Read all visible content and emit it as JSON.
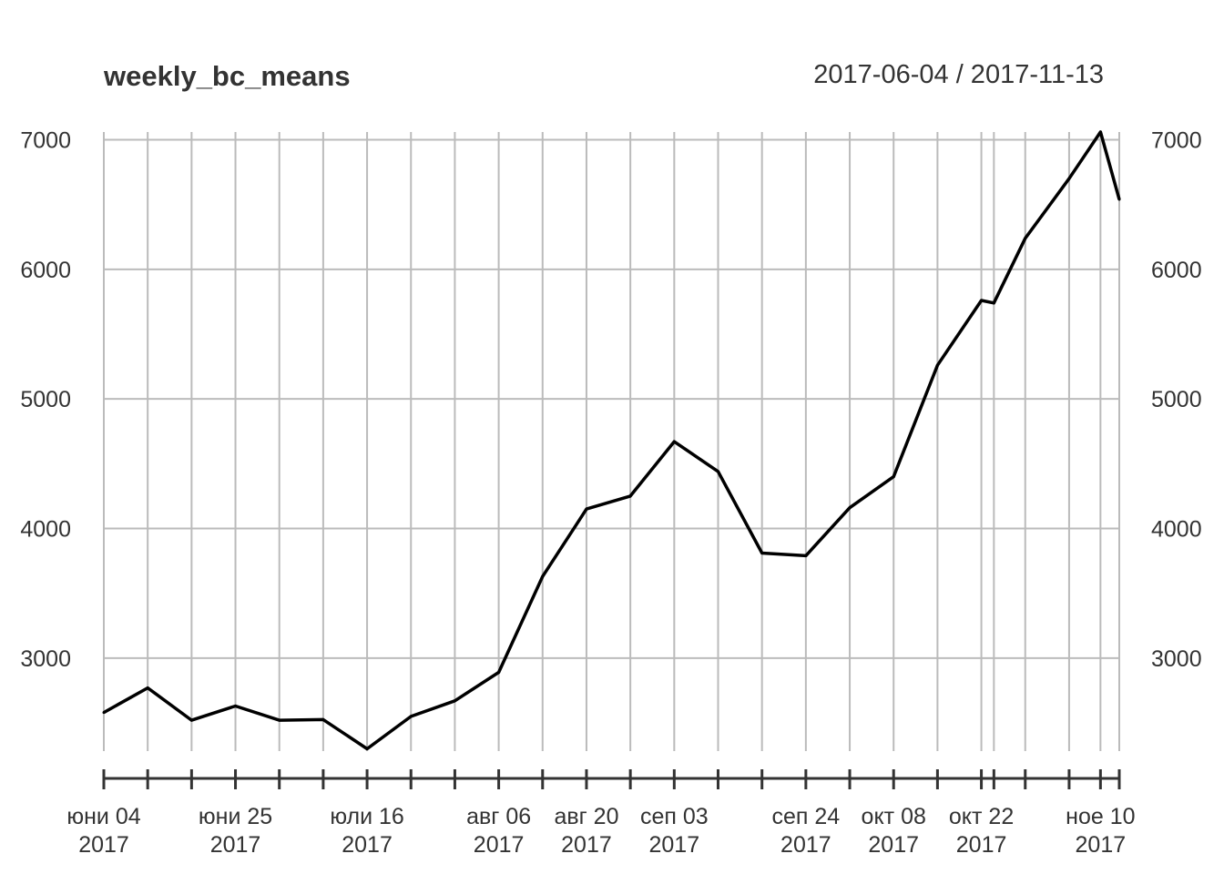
{
  "header": {
    "title": "weekly_bc_means",
    "date_range": "2017-06-04 / 2017-11-13"
  },
  "chart_data": {
    "type": "line",
    "title": "weekly_bc_means",
    "subtitle": "2017-06-04 / 2017-11-13",
    "xlabel": "",
    "ylabel": "",
    "ylim": [
      2290,
      7060
    ],
    "y_ticks": [
      3000,
      4000,
      5000,
      6000,
      7000
    ],
    "grid": true,
    "line_color": "#000000",
    "grid_color": "#bbbbbb",
    "x": [
      "2017-06-04",
      "2017-06-11",
      "2017-06-18",
      "2017-06-25",
      "2017-07-02",
      "2017-07-09",
      "2017-07-16",
      "2017-07-23",
      "2017-07-30",
      "2017-08-06",
      "2017-08-13",
      "2017-08-20",
      "2017-08-27",
      "2017-09-03",
      "2017-09-10",
      "2017-09-17",
      "2017-09-24",
      "2017-10-01",
      "2017-10-08",
      "2017-10-15",
      "2017-10-22",
      "2017-10-24",
      "2017-10-29",
      "2017-11-05",
      "2017-11-10",
      "2017-11-13"
    ],
    "series": [
      {
        "values": [
          2580,
          2770,
          2520,
          2630,
          2520,
          2525,
          2300,
          2550,
          2670,
          2890,
          3630,
          4150,
          4250,
          4670,
          4440,
          3810,
          3790,
          4160,
          4400,
          5260,
          5760,
          5740,
          6240,
          6700,
          7060,
          6540
        ]
      }
    ],
    "x_ticks": [
      "2017-06-04",
      "2017-06-11",
      "2017-06-18",
      "2017-06-25",
      "2017-07-02",
      "2017-07-09",
      "2017-07-16",
      "2017-07-23",
      "2017-07-30",
      "2017-08-06",
      "2017-08-13",
      "2017-08-20",
      "2017-08-27",
      "2017-09-03",
      "2017-09-10",
      "2017-09-17",
      "2017-09-24",
      "2017-10-01",
      "2017-10-08",
      "2017-10-15",
      "2017-10-22",
      "2017-10-24",
      "2017-10-29",
      "2017-11-05",
      "2017-11-10",
      "2017-11-13"
    ],
    "x_tick_labels": [
      {
        "date": "2017-06-04",
        "line1": "юни 04",
        "line2": "2017"
      },
      {
        "date": "2017-06-25",
        "line1": "юни 25",
        "line2": "2017"
      },
      {
        "date": "2017-07-16",
        "line1": "юли 16",
        "line2": "2017"
      },
      {
        "date": "2017-08-06",
        "line1": "авг 06",
        "line2": "2017"
      },
      {
        "date": "2017-08-20",
        "line1": "авг 20",
        "line2": "2017"
      },
      {
        "date": "2017-09-03",
        "line1": "сеп 03",
        "line2": "2017"
      },
      {
        "date": "2017-09-24",
        "line1": "сеп 24",
        "line2": "2017"
      },
      {
        "date": "2017-10-08",
        "line1": "окт 08",
        "line2": "2017"
      },
      {
        "date": "2017-10-22",
        "line1": "окт 22",
        "line2": "2017"
      },
      {
        "date": "2017-11-10",
        "line1": "ное 10",
        "line2": "2017"
      }
    ]
  }
}
